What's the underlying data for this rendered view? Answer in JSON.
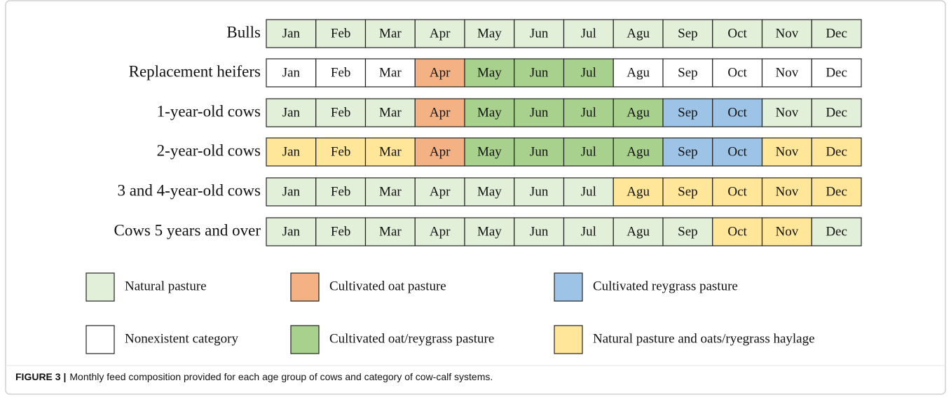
{
  "figure": {
    "rows": [
      {
        "label": "Bulls",
        "cells": [
          {
            "text": "Jan",
            "color": "#e2efd9"
          },
          {
            "text": "Feb",
            "color": "#e2efd9"
          },
          {
            "text": "Mar",
            "color": "#e2efd9"
          },
          {
            "text": "Apr",
            "color": "#e2efd9"
          },
          {
            "text": "May",
            "color": "#e2efd9"
          },
          {
            "text": "Jun",
            "color": "#e2efd9"
          },
          {
            "text": "Jul",
            "color": "#e2efd9"
          },
          {
            "text": "Agu",
            "color": "#e2efd9"
          },
          {
            "text": "Sep",
            "color": "#e2efd9"
          },
          {
            "text": "Oct",
            "color": "#e2efd9"
          },
          {
            "text": "Nov",
            "color": "#e2efd9"
          },
          {
            "text": "Dec",
            "color": "#e2efd9"
          }
        ]
      },
      {
        "label": "Replacement heifers",
        "cells": [
          {
            "text": "Jan",
            "color": "#ffffff"
          },
          {
            "text": "Feb",
            "color": "#ffffff"
          },
          {
            "text": "Mar",
            "color": "#ffffff"
          },
          {
            "text": "Apr",
            "color": "#f4b183"
          },
          {
            "text": "May",
            "color": "#a9d18e"
          },
          {
            "text": "Jun",
            "color": "#a9d18e"
          },
          {
            "text": "Jul",
            "color": "#a9d18e"
          },
          {
            "text": "Agu",
            "color": "#ffffff"
          },
          {
            "text": "Sep",
            "color": "#ffffff"
          },
          {
            "text": "Oct",
            "color": "#ffffff"
          },
          {
            "text": "Nov",
            "color": "#ffffff"
          },
          {
            "text": "Dec",
            "color": "#ffffff"
          }
        ]
      },
      {
        "label": "1-year-old cows",
        "cells": [
          {
            "text": "Jan",
            "color": "#e2efd9"
          },
          {
            "text": "Feb",
            "color": "#e2efd9"
          },
          {
            "text": "Mar",
            "color": "#e2efd9"
          },
          {
            "text": "Apr",
            "color": "#f4b183"
          },
          {
            "text": "May",
            "color": "#a9d18e"
          },
          {
            "text": "Jun",
            "color": "#a9d18e"
          },
          {
            "text": "Jul",
            "color": "#a9d18e"
          },
          {
            "text": "Agu",
            "color": "#a9d18e"
          },
          {
            "text": "Sep",
            "color": "#9dc3e6"
          },
          {
            "text": "Oct",
            "color": "#9dc3e6"
          },
          {
            "text": "Nov",
            "color": "#e2efd9"
          },
          {
            "text": "Dec",
            "color": "#e2efd9"
          }
        ]
      },
      {
        "label": "2-year-old cows",
        "cells": [
          {
            "text": "Jan",
            "color": "#ffe699"
          },
          {
            "text": "Feb",
            "color": "#ffe699"
          },
          {
            "text": "Mar",
            "color": "#ffe699"
          },
          {
            "text": "Apr",
            "color": "#f4b183"
          },
          {
            "text": "May",
            "color": "#a9d18e"
          },
          {
            "text": "Jun",
            "color": "#a9d18e"
          },
          {
            "text": "Jul",
            "color": "#a9d18e"
          },
          {
            "text": "Agu",
            "color": "#a9d18e"
          },
          {
            "text": "Sep",
            "color": "#9dc3e6"
          },
          {
            "text": "Oct",
            "color": "#9dc3e6"
          },
          {
            "text": "Nov",
            "color": "#ffe699"
          },
          {
            "text": "Dec",
            "color": "#ffe699"
          }
        ]
      },
      {
        "label": "3 and 4-year-old cows",
        "cells": [
          {
            "text": "Jan",
            "color": "#e2efd9"
          },
          {
            "text": "Feb",
            "color": "#e2efd9"
          },
          {
            "text": "Mar",
            "color": "#e2efd9"
          },
          {
            "text": "Apr",
            "color": "#e2efd9"
          },
          {
            "text": "May",
            "color": "#e2efd9"
          },
          {
            "text": "Jun",
            "color": "#e2efd9"
          },
          {
            "text": "Jul",
            "color": "#e2efd9"
          },
          {
            "text": "Agu",
            "color": "#ffe699"
          },
          {
            "text": "Sep",
            "color": "#ffe699"
          },
          {
            "text": "Oct",
            "color": "#ffe699"
          },
          {
            "text": "Nov",
            "color": "#ffe699"
          },
          {
            "text": "Dec",
            "color": "#ffe699"
          }
        ]
      },
      {
        "label": "Cows 5 years and over",
        "cells": [
          {
            "text": "Jan",
            "color": "#e2efd9"
          },
          {
            "text": "Feb",
            "color": "#e2efd9"
          },
          {
            "text": "Mar",
            "color": "#e2efd9"
          },
          {
            "text": "Apr",
            "color": "#e2efd9"
          },
          {
            "text": "May",
            "color": "#e2efd9"
          },
          {
            "text": "Jun",
            "color": "#e2efd9"
          },
          {
            "text": "Jul",
            "color": "#e2efd9"
          },
          {
            "text": "Agu",
            "color": "#e2efd9"
          },
          {
            "text": "Sep",
            "color": "#e2efd9"
          },
          {
            "text": "Oct",
            "color": "#ffe699"
          },
          {
            "text": "Nov",
            "color": "#ffe699"
          },
          {
            "text": "Dec",
            "color": "#e2efd9"
          }
        ]
      }
    ],
    "legend": [
      {
        "label": "Natural pasture",
        "color": "#e2efd9"
      },
      {
        "label": "Cultivated oat pasture",
        "color": "#f4b183"
      },
      {
        "label": "Cultivated reygrass pasture",
        "color": "#9dc3e6"
      },
      {
        "label": "Nonexistent category",
        "color": "#ffffff"
      },
      {
        "label": "Cultivated oat/reygrass pasture",
        "color": "#a9d18e"
      },
      {
        "label": "Natural pasture and oats/ryegrass haylage",
        "color": "#ffe699"
      }
    ],
    "caption_label": "FIGURE 3 |",
    "caption_text": "Monthly feed composition provided for each age group of cows and category of cow-calf systems."
  }
}
